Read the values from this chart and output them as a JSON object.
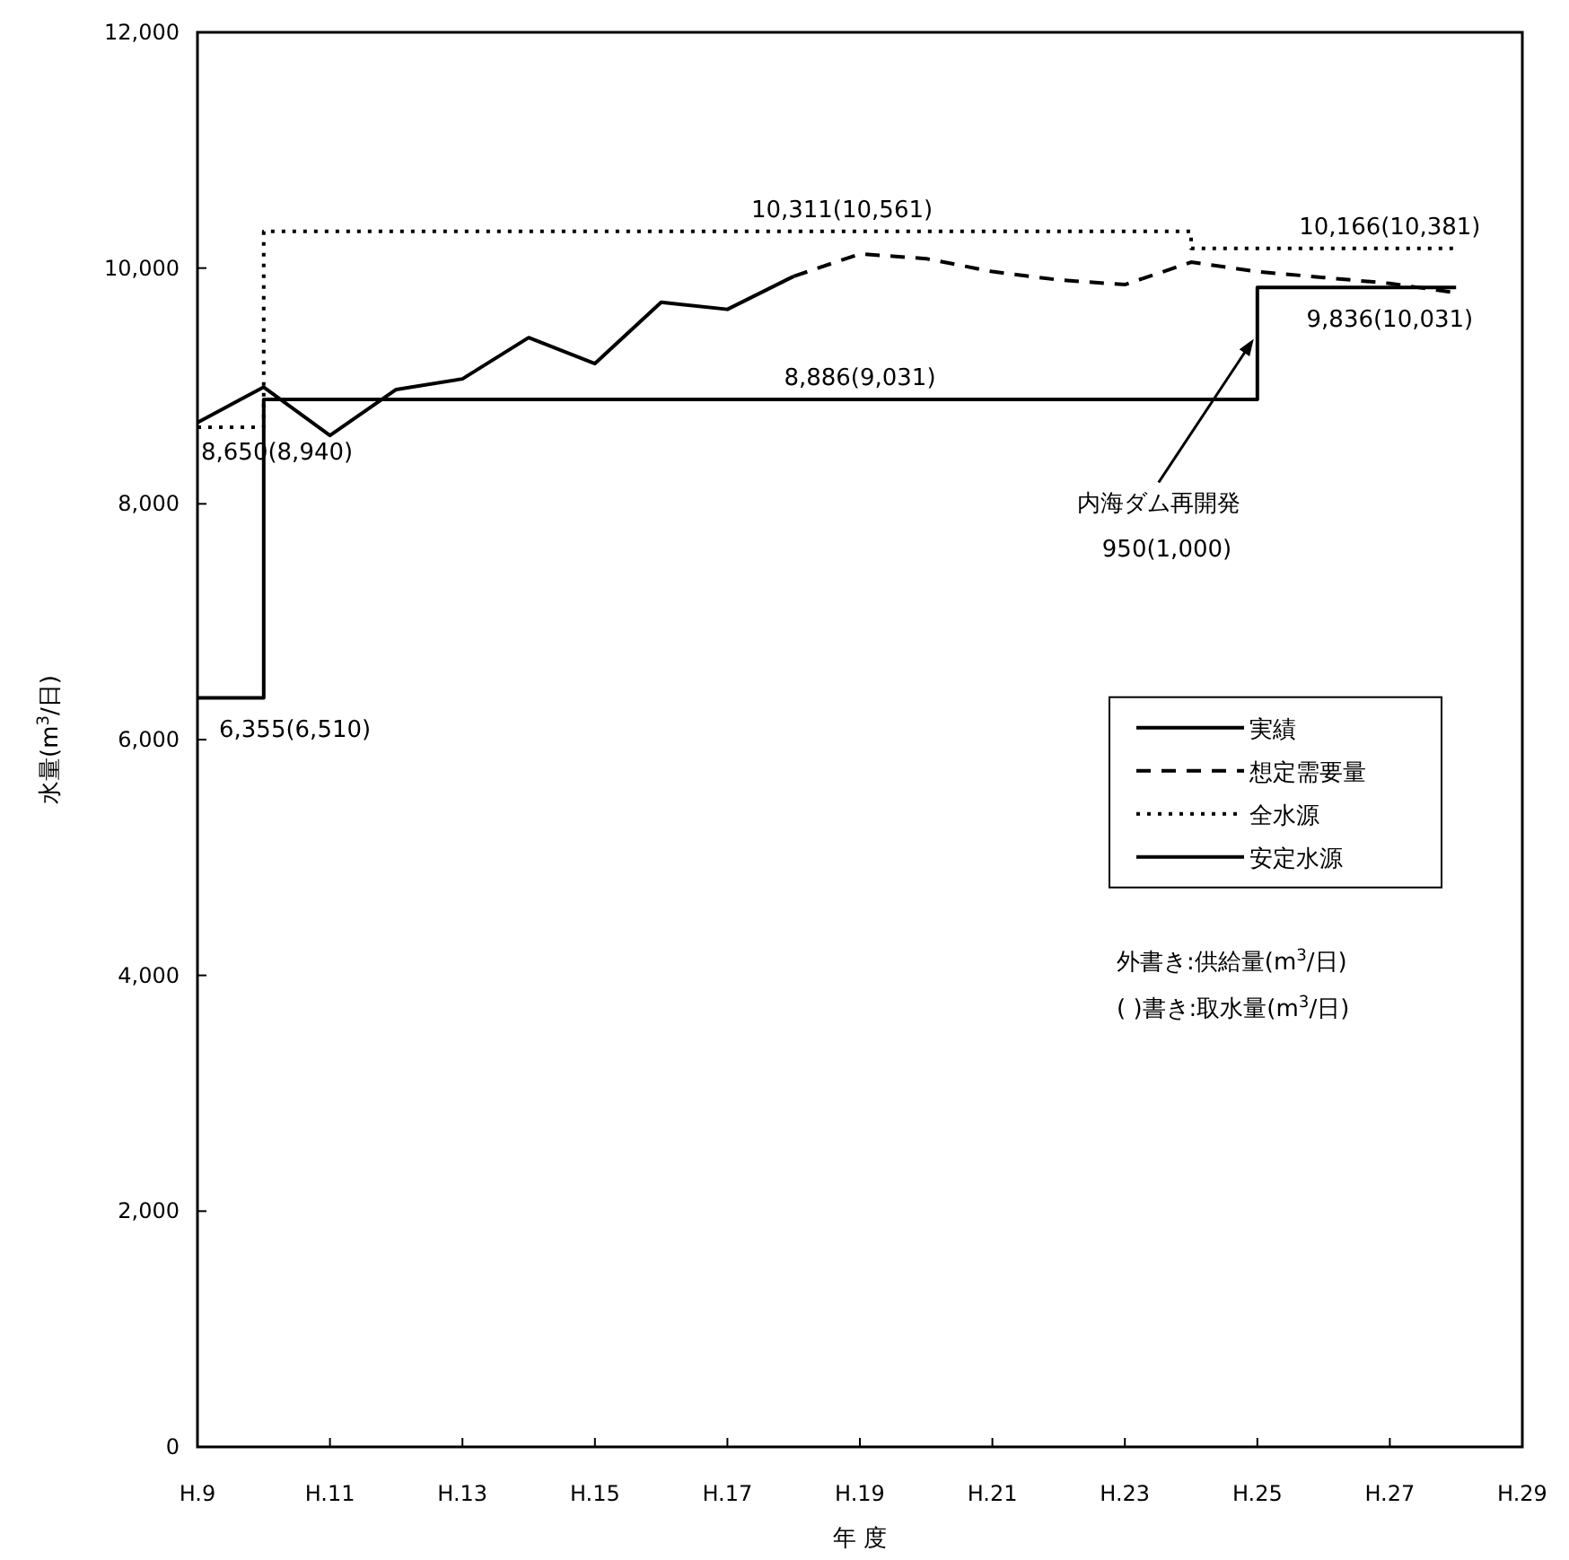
{
  "chart_data": {
    "type": "line",
    "xlabel": "年 度",
    "ylabel": "水量(m$^{3}$/日)",
    "categories": [
      "H.9",
      null,
      "H.11",
      null,
      "H.13",
      null,
      "H.15",
      null,
      "H.17",
      null,
      "H.19",
      null,
      "H.21",
      null,
      "H.23",
      null,
      "H.25",
      null,
      "H.27",
      null,
      "H.29"
    ],
    "ylim": [
      0,
      12000
    ],
    "yticks": [
      0,
      {
        "value": 2000,
        "label": "2,000"
      },
      {
        "value": 4000,
        "label": "4,000"
      },
      {
        "value": 6000,
        "label": "6,000"
      },
      {
        "value": 8000,
        "label": "8,000"
      },
      {
        "value": 10000,
        "label": "10,000"
      },
      {
        "value": 12000,
        "label": "12,000"
      }
    ],
    "grid": false,
    "legend": "right",
    "marker": "none",
    "series": [
      {
        "name": "実績",
        "line_style": "solid",
        "color": "#000000",
        "values": [
          8690,
          8990,
          8580,
          8970,
          9060,
          9410,
          9190,
          9710,
          9650,
          9930,
          null,
          null,
          null,
          null,
          null,
          null,
          null,
          null,
          null,
          null,
          null
        ]
      },
      {
        "name": "想定需要量",
        "line_style": "dashed",
        "color": "#000000",
        "values": [
          null,
          null,
          null,
          null,
          null,
          null,
          null,
          null,
          null,
          9930,
          10120,
          10080,
          9970,
          9900,
          9860,
          10050,
          9970,
          9920,
          9870,
          9790,
          null
        ]
      },
      {
        "name": "全水源",
        "type": "step",
        "line_style": "dotted",
        "color": "#000000",
        "values": [
          8650,
          10311,
          10311,
          10311,
          10311,
          10311,
          10311,
          10311,
          10311,
          10311,
          10311,
          10311,
          10311,
          10311,
          10311,
          10166,
          10166,
          10166,
          10166,
          10166,
          null
        ]
      },
      {
        "name": "安定水源",
        "type": "step",
        "line_style": "solid",
        "color": "#000000",
        "values": [
          6355,
          8886,
          8886,
          8886,
          8886,
          8886,
          8886,
          8886,
          8886,
          8886,
          8886,
          8886,
          8886,
          8886,
          8886,
          8886,
          9836,
          9836,
          9836,
          9836,
          null
        ]
      }
    ],
    "annotations": [
      {
        "text": "10,311(10,561)",
        "x": "H.19",
        "y": 10311
      },
      {
        "text": "10,166(10,381)",
        "x": "H.27",
        "y": 10166
      },
      {
        "text": "8,886(9,031)",
        "x": "H.19",
        "y": 8886
      },
      {
        "text": "9,836(10,031)",
        "x": "H.27",
        "y": 9836
      },
      {
        "text": "8,650(8,940)",
        "x": "H.9",
        "y": 8650
      },
      {
        "text": "6,355(6,510)",
        "x": "H.9",
        "y": 6355
      },
      {
        "text": "内海ダム再開発",
        "x": "H.25",
        "y": 9400
      },
      "950(1,000)",
      "外書き:供給量(m$^{3}$/日)",
      "( )書き:取水量(m$^{3}$/日)"
    ]
  }
}
